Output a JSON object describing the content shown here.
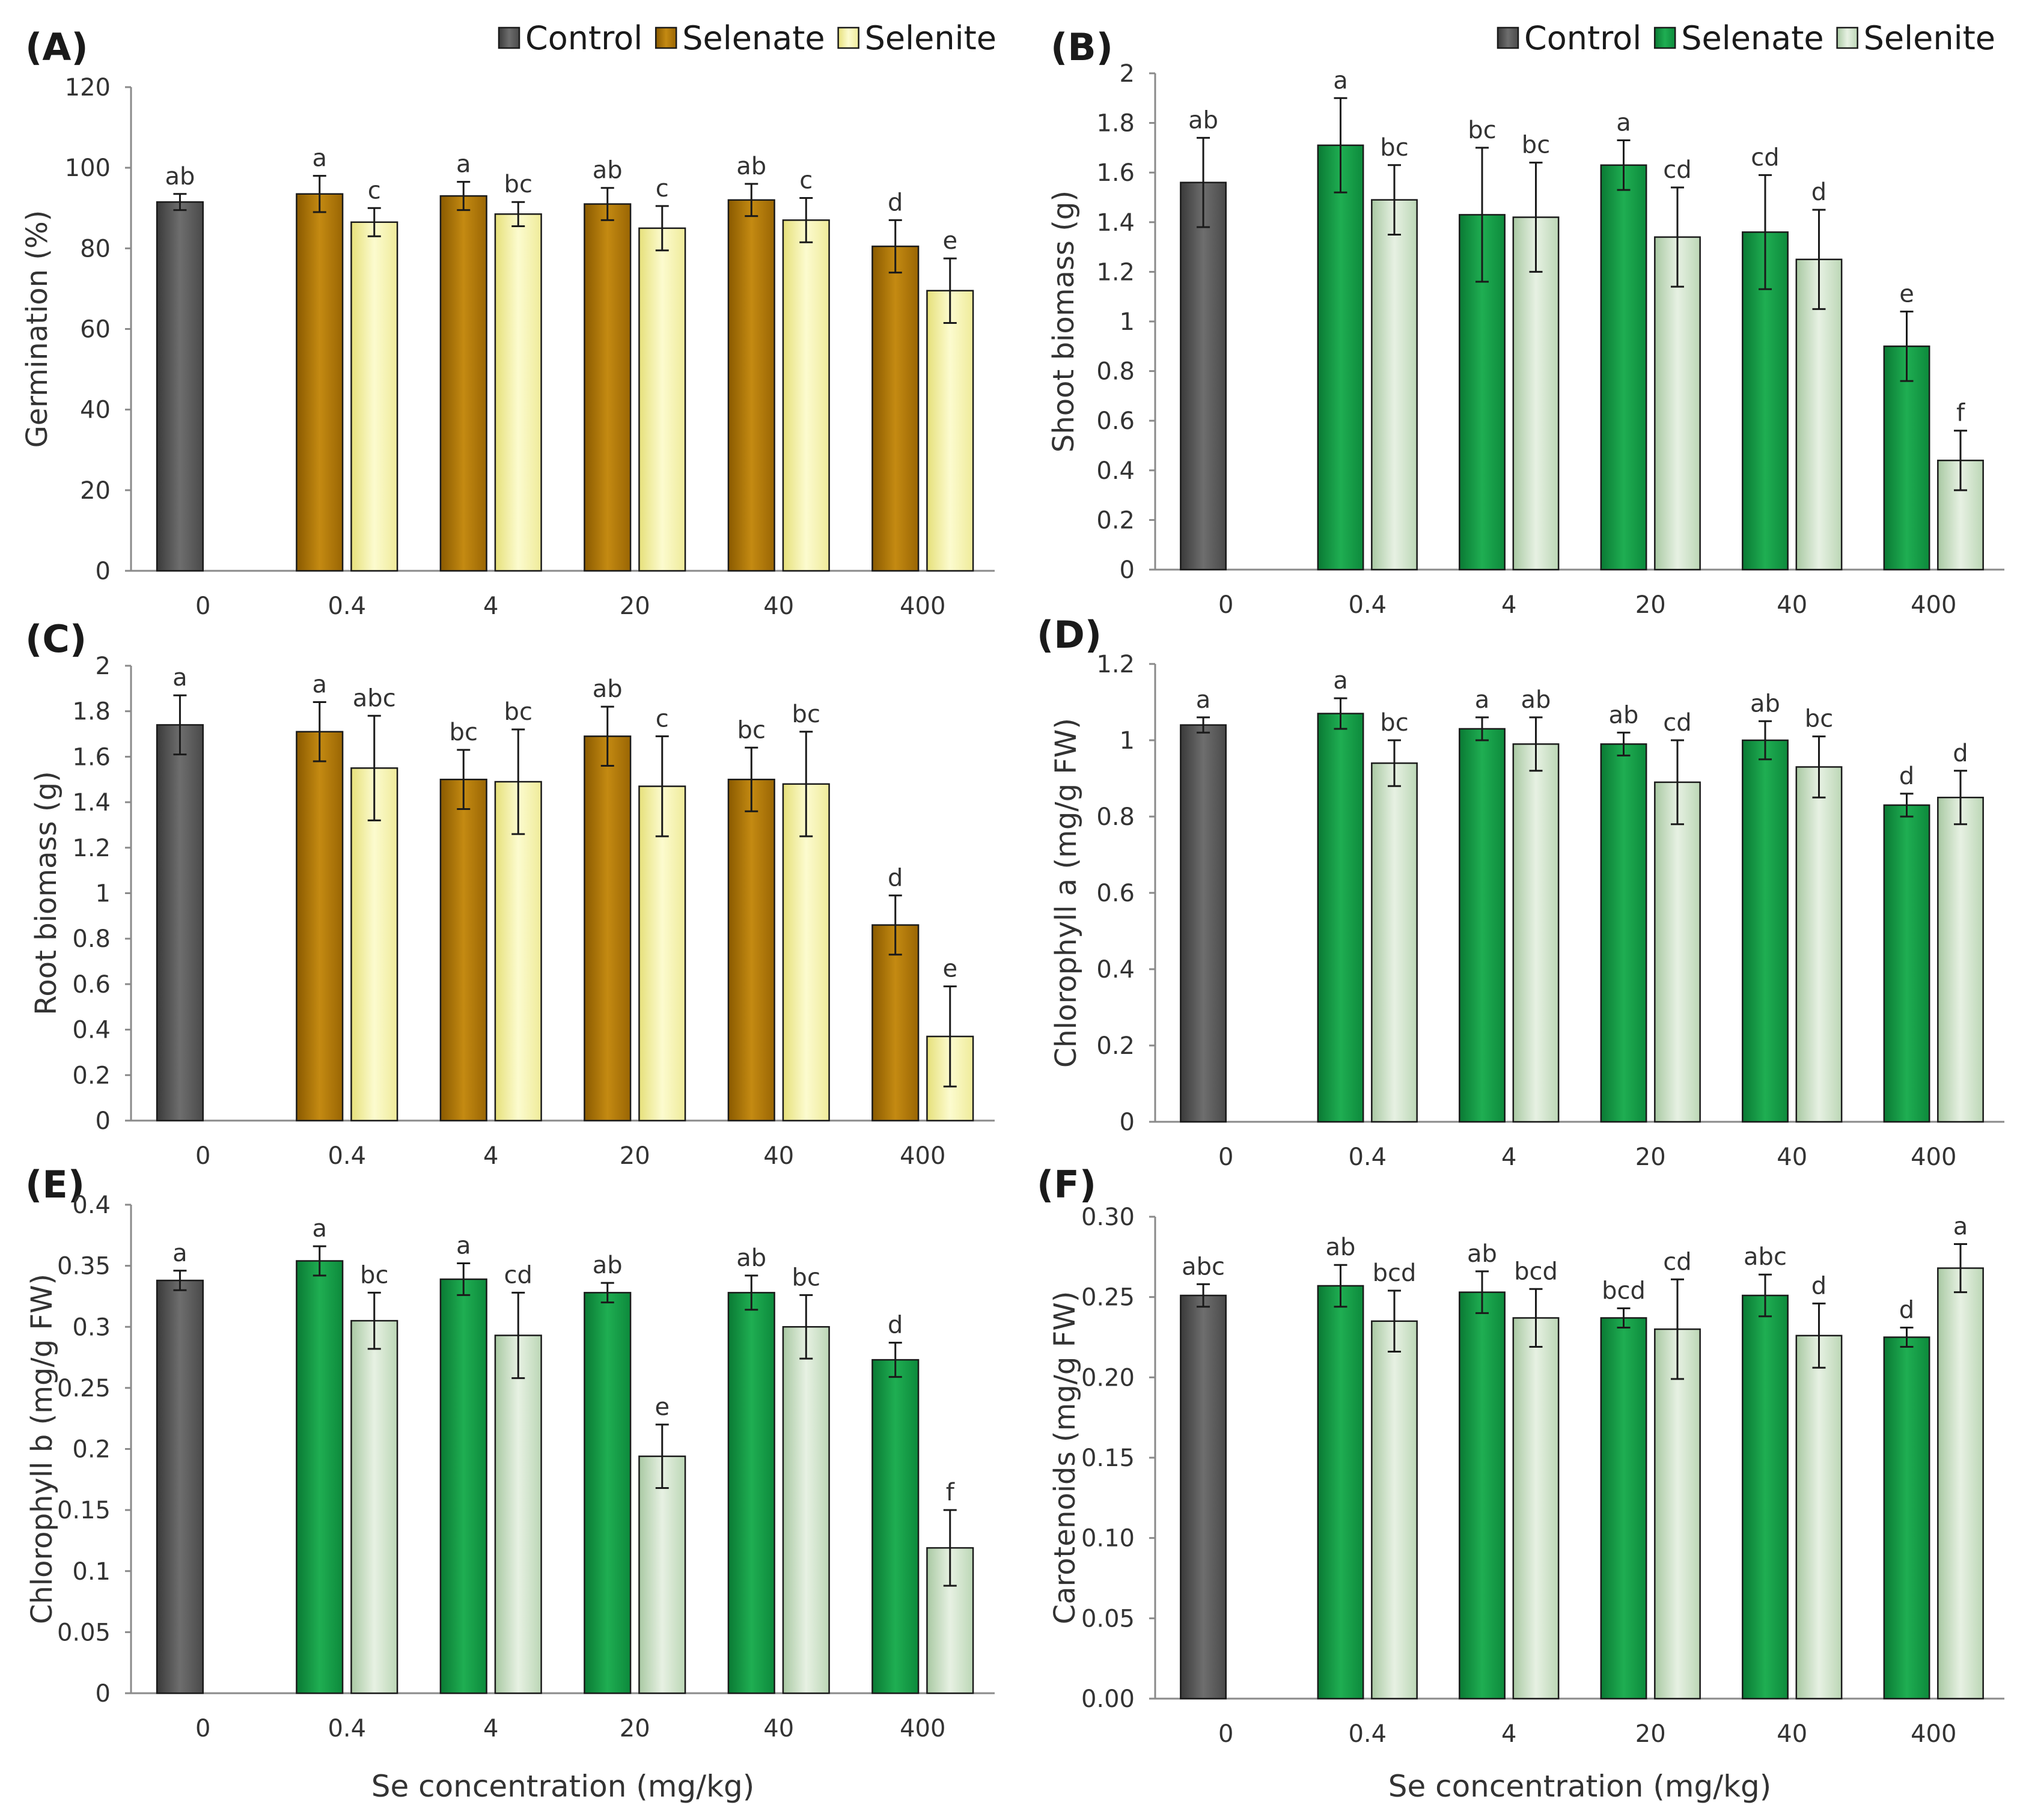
{
  "figure": {
    "x_axis_title": "Se concentration (mg/kg)"
  },
  "palettes": {
    "control": [
      "#3a3a3a",
      "#6e6e6e",
      "#4a4a4a"
    ],
    "gold_selenate": [
      "#8a5a00",
      "#c48a12",
      "#9a6604"
    ],
    "gold_selenite": [
      "#e6e07a",
      "#fcfbcf",
      "#efeb9a"
    ],
    "green_selenate": [
      "#0a7a34",
      "#1fae52",
      "#0d8a3c"
    ],
    "green_selenite": [
      "#a9c9a3",
      "#e7f1e3",
      "#bcd7b6"
    ]
  },
  "chart_data": [
    {
      "id": "A",
      "panel_label": "(A)",
      "type": "bar",
      "color_scheme": "gold",
      "ylabel": "Germination (%)",
      "categories": [
        "0",
        "0.4",
        "4",
        "20",
        "40",
        "400"
      ],
      "ylim": [
        0,
        120
      ],
      "yticks": [
        "0",
        "20",
        "40",
        "60",
        "80",
        "100",
        "120"
      ],
      "legend": [
        "Control",
        "Selenate",
        "Selenite"
      ],
      "show_legend": true,
      "show_xlabel": false,
      "series": [
        {
          "name": "Control",
          "values": [
            91.5,
            null,
            null,
            null,
            null,
            null
          ],
          "errors": [
            2,
            null,
            null,
            null,
            null,
            null
          ],
          "letters": [
            "ab",
            null,
            null,
            null,
            null,
            null
          ]
        },
        {
          "name": "Selenate",
          "values": [
            null,
            93.5,
            93,
            91,
            92,
            80.5
          ],
          "errors": [
            null,
            4.5,
            3.5,
            4,
            4,
            6.5
          ],
          "letters": [
            null,
            "a",
            "a",
            "ab",
            "ab",
            "d"
          ]
        },
        {
          "name": "Selenite",
          "values": [
            null,
            86.5,
            88.5,
            85,
            87,
            69.5
          ],
          "errors": [
            null,
            3.5,
            3,
            5.5,
            5.5,
            8
          ],
          "letters": [
            null,
            "c",
            "bc",
            "c",
            "c",
            "e"
          ]
        }
      ]
    },
    {
      "id": "B",
      "panel_label": "(B)",
      "type": "bar",
      "color_scheme": "green",
      "ylabel": "Shoot biomass (g)",
      "categories": [
        "0",
        "0.4",
        "4",
        "20",
        "40",
        "400"
      ],
      "ylim": [
        0,
        2
      ],
      "yticks": [
        "0",
        "0.2",
        "0.4",
        "0.6",
        "0.8",
        "1",
        "1.2",
        "1.4",
        "1.6",
        "1.8",
        "2"
      ],
      "legend": [
        "Control",
        "Selenate",
        "Selenite"
      ],
      "show_legend": true,
      "show_xlabel": false,
      "series": [
        {
          "name": "Control",
          "values": [
            1.56,
            null,
            null,
            null,
            null,
            null
          ],
          "errors": [
            0.18,
            null,
            null,
            null,
            null,
            null
          ],
          "letters": [
            "ab",
            null,
            null,
            null,
            null,
            null
          ]
        },
        {
          "name": "Selenate",
          "values": [
            null,
            1.71,
            1.43,
            1.63,
            1.36,
            0.9
          ],
          "errors": [
            null,
            0.19,
            0.27,
            0.1,
            0.23,
            0.14
          ],
          "letters": [
            null,
            "a",
            "bc",
            "a",
            "cd",
            "e"
          ]
        },
        {
          "name": "Selenite",
          "values": [
            null,
            1.49,
            1.42,
            1.34,
            1.25,
            0.44
          ],
          "errors": [
            null,
            0.14,
            0.22,
            0.2,
            0.2,
            0.12
          ],
          "letters": [
            null,
            "bc",
            "bc",
            "cd",
            "d",
            "f"
          ]
        }
      ]
    },
    {
      "id": "C",
      "panel_label": "(C)",
      "type": "bar",
      "color_scheme": "gold",
      "ylabel": "Root biomass (g)",
      "categories": [
        "0",
        "0.4",
        "4",
        "20",
        "40",
        "400"
      ],
      "ylim": [
        0,
        2
      ],
      "yticks": [
        "0",
        "0.2",
        "0.4",
        "0.6",
        "0.8",
        "1",
        "1.2",
        "1.4",
        "1.6",
        "1.8",
        "2"
      ],
      "legend": [],
      "show_legend": false,
      "show_xlabel": false,
      "series": [
        {
          "name": "Control",
          "values": [
            1.74,
            null,
            null,
            null,
            null,
            null
          ],
          "errors": [
            0.13,
            null,
            null,
            null,
            null,
            null
          ],
          "letters": [
            "a",
            null,
            null,
            null,
            null,
            null
          ]
        },
        {
          "name": "Selenate",
          "values": [
            null,
            1.71,
            1.5,
            1.69,
            1.5,
            0.86
          ],
          "errors": [
            null,
            0.13,
            0.13,
            0.13,
            0.14,
            0.13
          ],
          "letters": [
            null,
            "a",
            "bc",
            "ab",
            "bc",
            "d"
          ]
        },
        {
          "name": "Selenite",
          "values": [
            null,
            1.55,
            1.49,
            1.47,
            1.48,
            0.37
          ],
          "errors": [
            null,
            0.23,
            0.23,
            0.22,
            0.23,
            0.22
          ],
          "letters": [
            null,
            "abc",
            "bc",
            "c",
            "bc",
            "e"
          ]
        }
      ]
    },
    {
      "id": "D",
      "panel_label": "(D)",
      "type": "bar",
      "color_scheme": "green",
      "ylabel": "Chlorophyll a (mg/g FW)",
      "categories": [
        "0",
        "0.4",
        "4",
        "20",
        "40",
        "400"
      ],
      "ylim": [
        0,
        1.2
      ],
      "yticks": [
        "0",
        "0.2",
        "0.4",
        "0.6",
        "0.8",
        "1",
        "1.2"
      ],
      "legend": [],
      "show_legend": false,
      "show_xlabel": false,
      "series": [
        {
          "name": "Control",
          "values": [
            1.04,
            null,
            null,
            null,
            null,
            null
          ],
          "errors": [
            0.02,
            null,
            null,
            null,
            null,
            null
          ],
          "letters": [
            "a",
            null,
            null,
            null,
            null,
            null
          ]
        },
        {
          "name": "Selenate",
          "values": [
            null,
            1.07,
            1.03,
            0.99,
            1.0,
            0.83
          ],
          "errors": [
            null,
            0.04,
            0.03,
            0.03,
            0.05,
            0.03
          ],
          "letters": [
            null,
            "a",
            "a",
            "ab",
            "ab",
            "d"
          ]
        },
        {
          "name": "Selenite",
          "values": [
            null,
            0.94,
            0.99,
            0.89,
            0.93,
            0.85
          ],
          "errors": [
            null,
            0.06,
            0.07,
            0.11,
            0.08,
            0.07
          ],
          "letters": [
            null,
            "bc",
            "ab",
            "cd",
            "bc",
            "d"
          ]
        }
      ]
    },
    {
      "id": "E",
      "panel_label": "(E)",
      "type": "bar",
      "color_scheme": "green",
      "ylabel": "Chlorophyll b (mg/g FW)",
      "categories": [
        "0",
        "0.4",
        "4",
        "20",
        "40",
        "400"
      ],
      "ylim": [
        0,
        0.4
      ],
      "yticks": [
        "0",
        "0.05",
        "0.1",
        "0.15",
        "0.2",
        "0.25",
        "0.3",
        "0.35",
        "0.4"
      ],
      "legend": [],
      "show_legend": false,
      "show_xlabel": true,
      "series": [
        {
          "name": "Control",
          "values": [
            0.338,
            null,
            null,
            null,
            null,
            null
          ],
          "errors": [
            0.008,
            null,
            null,
            null,
            null,
            null
          ],
          "letters": [
            "a",
            null,
            null,
            null,
            null,
            null
          ]
        },
        {
          "name": "Selenate",
          "values": [
            null,
            0.354,
            0.339,
            0.328,
            0.328,
            0.273
          ],
          "errors": [
            null,
            0.012,
            0.013,
            0.008,
            0.014,
            0.014
          ],
          "letters": [
            null,
            "a",
            "a",
            "ab",
            "ab",
            "d"
          ]
        },
        {
          "name": "Selenite",
          "values": [
            null,
            0.305,
            0.293,
            0.194,
            0.3,
            0.119
          ],
          "errors": [
            null,
            0.023,
            0.035,
            0.026,
            0.026,
            0.031
          ],
          "letters": [
            null,
            "bc",
            "cd",
            "e",
            "bc",
            "f"
          ]
        }
      ]
    },
    {
      "id": "F",
      "panel_label": "(F)",
      "type": "bar",
      "color_scheme": "green",
      "ylabel": "Carotenoids (mg/g FW)",
      "categories": [
        "0",
        "0.4",
        "4",
        "20",
        "40",
        "400"
      ],
      "ylim": [
        0,
        0.3
      ],
      "yticks": [
        "0.00",
        "0.05",
        "0.10",
        "0.15",
        "0.20",
        "0.25",
        "0.30"
      ],
      "legend": [],
      "show_legend": false,
      "show_xlabel": true,
      "series": [
        {
          "name": "Control",
          "values": [
            0.251,
            null,
            null,
            null,
            null,
            null
          ],
          "errors": [
            0.007,
            null,
            null,
            null,
            null,
            null
          ],
          "letters": [
            "abc",
            null,
            null,
            null,
            null,
            null
          ]
        },
        {
          "name": "Selenate",
          "values": [
            null,
            0.257,
            0.253,
            0.237,
            0.251,
            0.225
          ],
          "errors": [
            null,
            0.013,
            0.013,
            0.006,
            0.013,
            0.006
          ],
          "letters": [
            null,
            "ab",
            "ab",
            "bcd",
            "abc",
            "d"
          ]
        },
        {
          "name": "Selenite",
          "values": [
            null,
            0.235,
            0.237,
            0.23,
            0.226,
            0.268
          ],
          "errors": [
            null,
            0.019,
            0.018,
            0.031,
            0.02,
            0.015
          ],
          "letters": [
            null,
            "bcd",
            "bcd",
            "cd",
            "d",
            "a"
          ]
        }
      ]
    }
  ]
}
